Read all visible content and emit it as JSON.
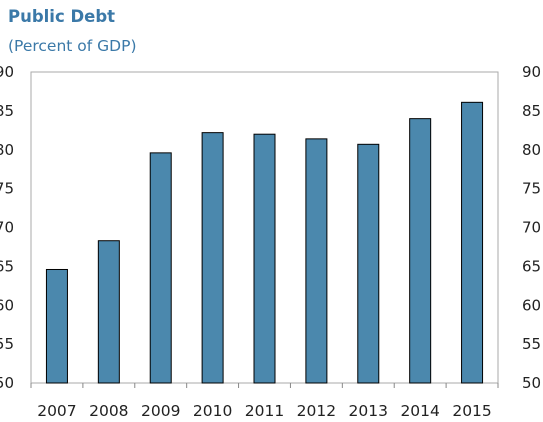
{
  "chart_data": {
    "type": "bar",
    "title": "Public Debt",
    "subtitle": "(Percent of GDP)",
    "categories": [
      "2007",
      "2008",
      "2009",
      "2010",
      "2011",
      "2012",
      "2013",
      "2014",
      "2015"
    ],
    "values": [
      64.6,
      68.3,
      79.6,
      82.2,
      82.0,
      81.4,
      80.7,
      84.0,
      86.1
    ],
    "ylim": [
      50,
      90
    ],
    "yticks": [
      50,
      55,
      60,
      65,
      70,
      75,
      80,
      85,
      90
    ],
    "ytick_labels_left": [
      "50",
      "55",
      "60",
      "65",
      "70",
      "75",
      "80",
      "85",
      "90"
    ],
    "ytick_labels_right": [
      "50",
      "55",
      "60",
      "65",
      "70",
      "75",
      "80",
      "85",
      "90"
    ],
    "grid": false,
    "xlabel": "",
    "ylabel": "",
    "bar_color": "#4b88ad",
    "title_color": "#3b79a8"
  }
}
